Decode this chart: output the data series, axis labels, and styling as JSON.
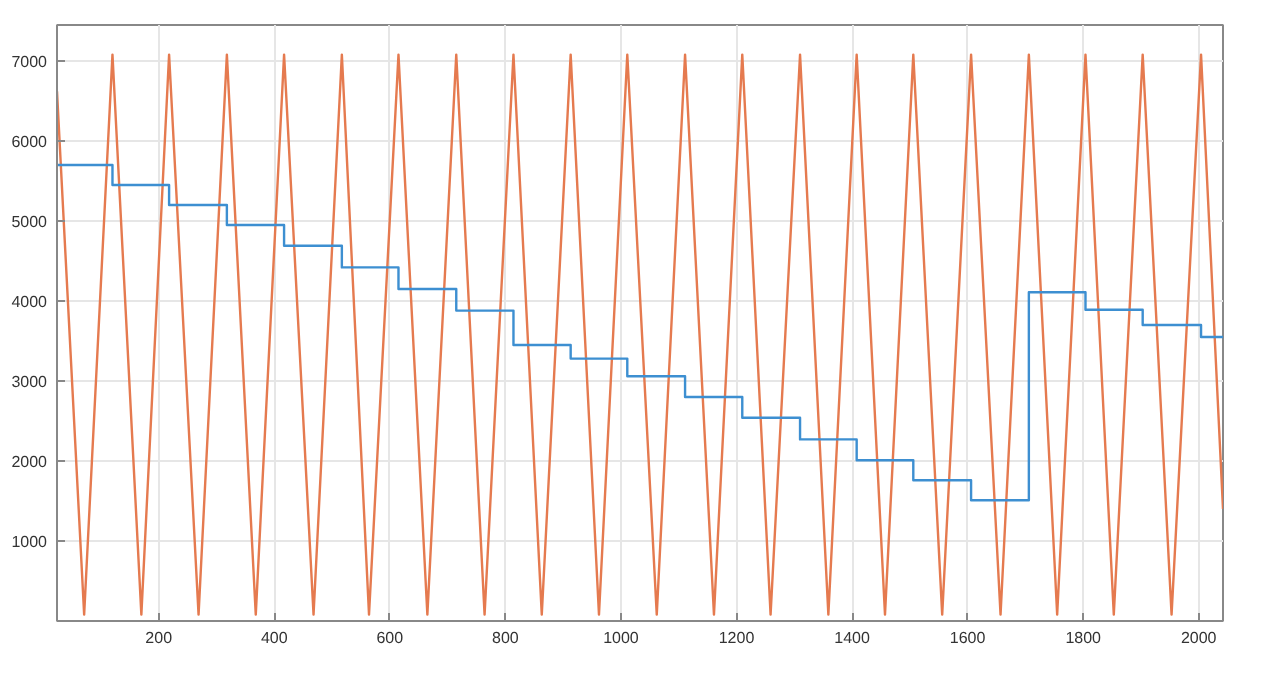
{
  "chart_data": {
    "type": "line",
    "xlim": [
      24,
      2042
    ],
    "ylim": [
      0,
      7450
    ],
    "xticks": [
      200,
      400,
      600,
      800,
      1000,
      1200,
      1400,
      1600,
      1800,
      2000
    ],
    "yticks": [
      1000,
      2000,
      3000,
      4000,
      5000,
      6000,
      7000
    ],
    "grid": true,
    "marker": "none",
    "line_style": "solid",
    "series": [
      {
        "color": "#e57a4f",
        "x": [
          24,
          71,
          120,
          170,
          218,
          269,
          318,
          368,
          417,
          468,
          517,
          564,
          615,
          665,
          715,
          764,
          814,
          863,
          913,
          962,
          1011,
          1062,
          1111,
          1161,
          1210,
          1259,
          1310,
          1359,
          1408,
          1457,
          1506,
          1556,
          1606,
          1657,
          1706,
          1755,
          1804,
          1853,
          1903,
          1953,
          2004,
          2042
        ],
        "values": [
          6620,
          80,
          7080,
          80,
          7080,
          80,
          7080,
          80,
          7080,
          80,
          7080,
          80,
          7080,
          80,
          7080,
          80,
          7080,
          80,
          7080,
          80,
          7080,
          80,
          7080,
          80,
          7080,
          80,
          7080,
          80,
          7080,
          80,
          7080,
          80,
          7080,
          80,
          7080,
          80,
          7080,
          80,
          7080,
          80,
          7080,
          1400
        ]
      },
      {
        "type": "step",
        "color": "#3d8fd1",
        "x": [
          24,
          120,
          218,
          318,
          417,
          517,
          615,
          715,
          814,
          913,
          1011,
          1111,
          1210,
          1310,
          1408,
          1506,
          1606,
          1706,
          1804,
          1903,
          2004,
          2042
        ],
        "values": [
          5700,
          5450,
          5200,
          4950,
          4690,
          4420,
          4150,
          3880,
          3450,
          3280,
          3060,
          2800,
          2540,
          2270,
          2010,
          1760,
          1510,
          4110,
          3890,
          3700,
          3550,
          3550
        ]
      }
    ]
  }
}
